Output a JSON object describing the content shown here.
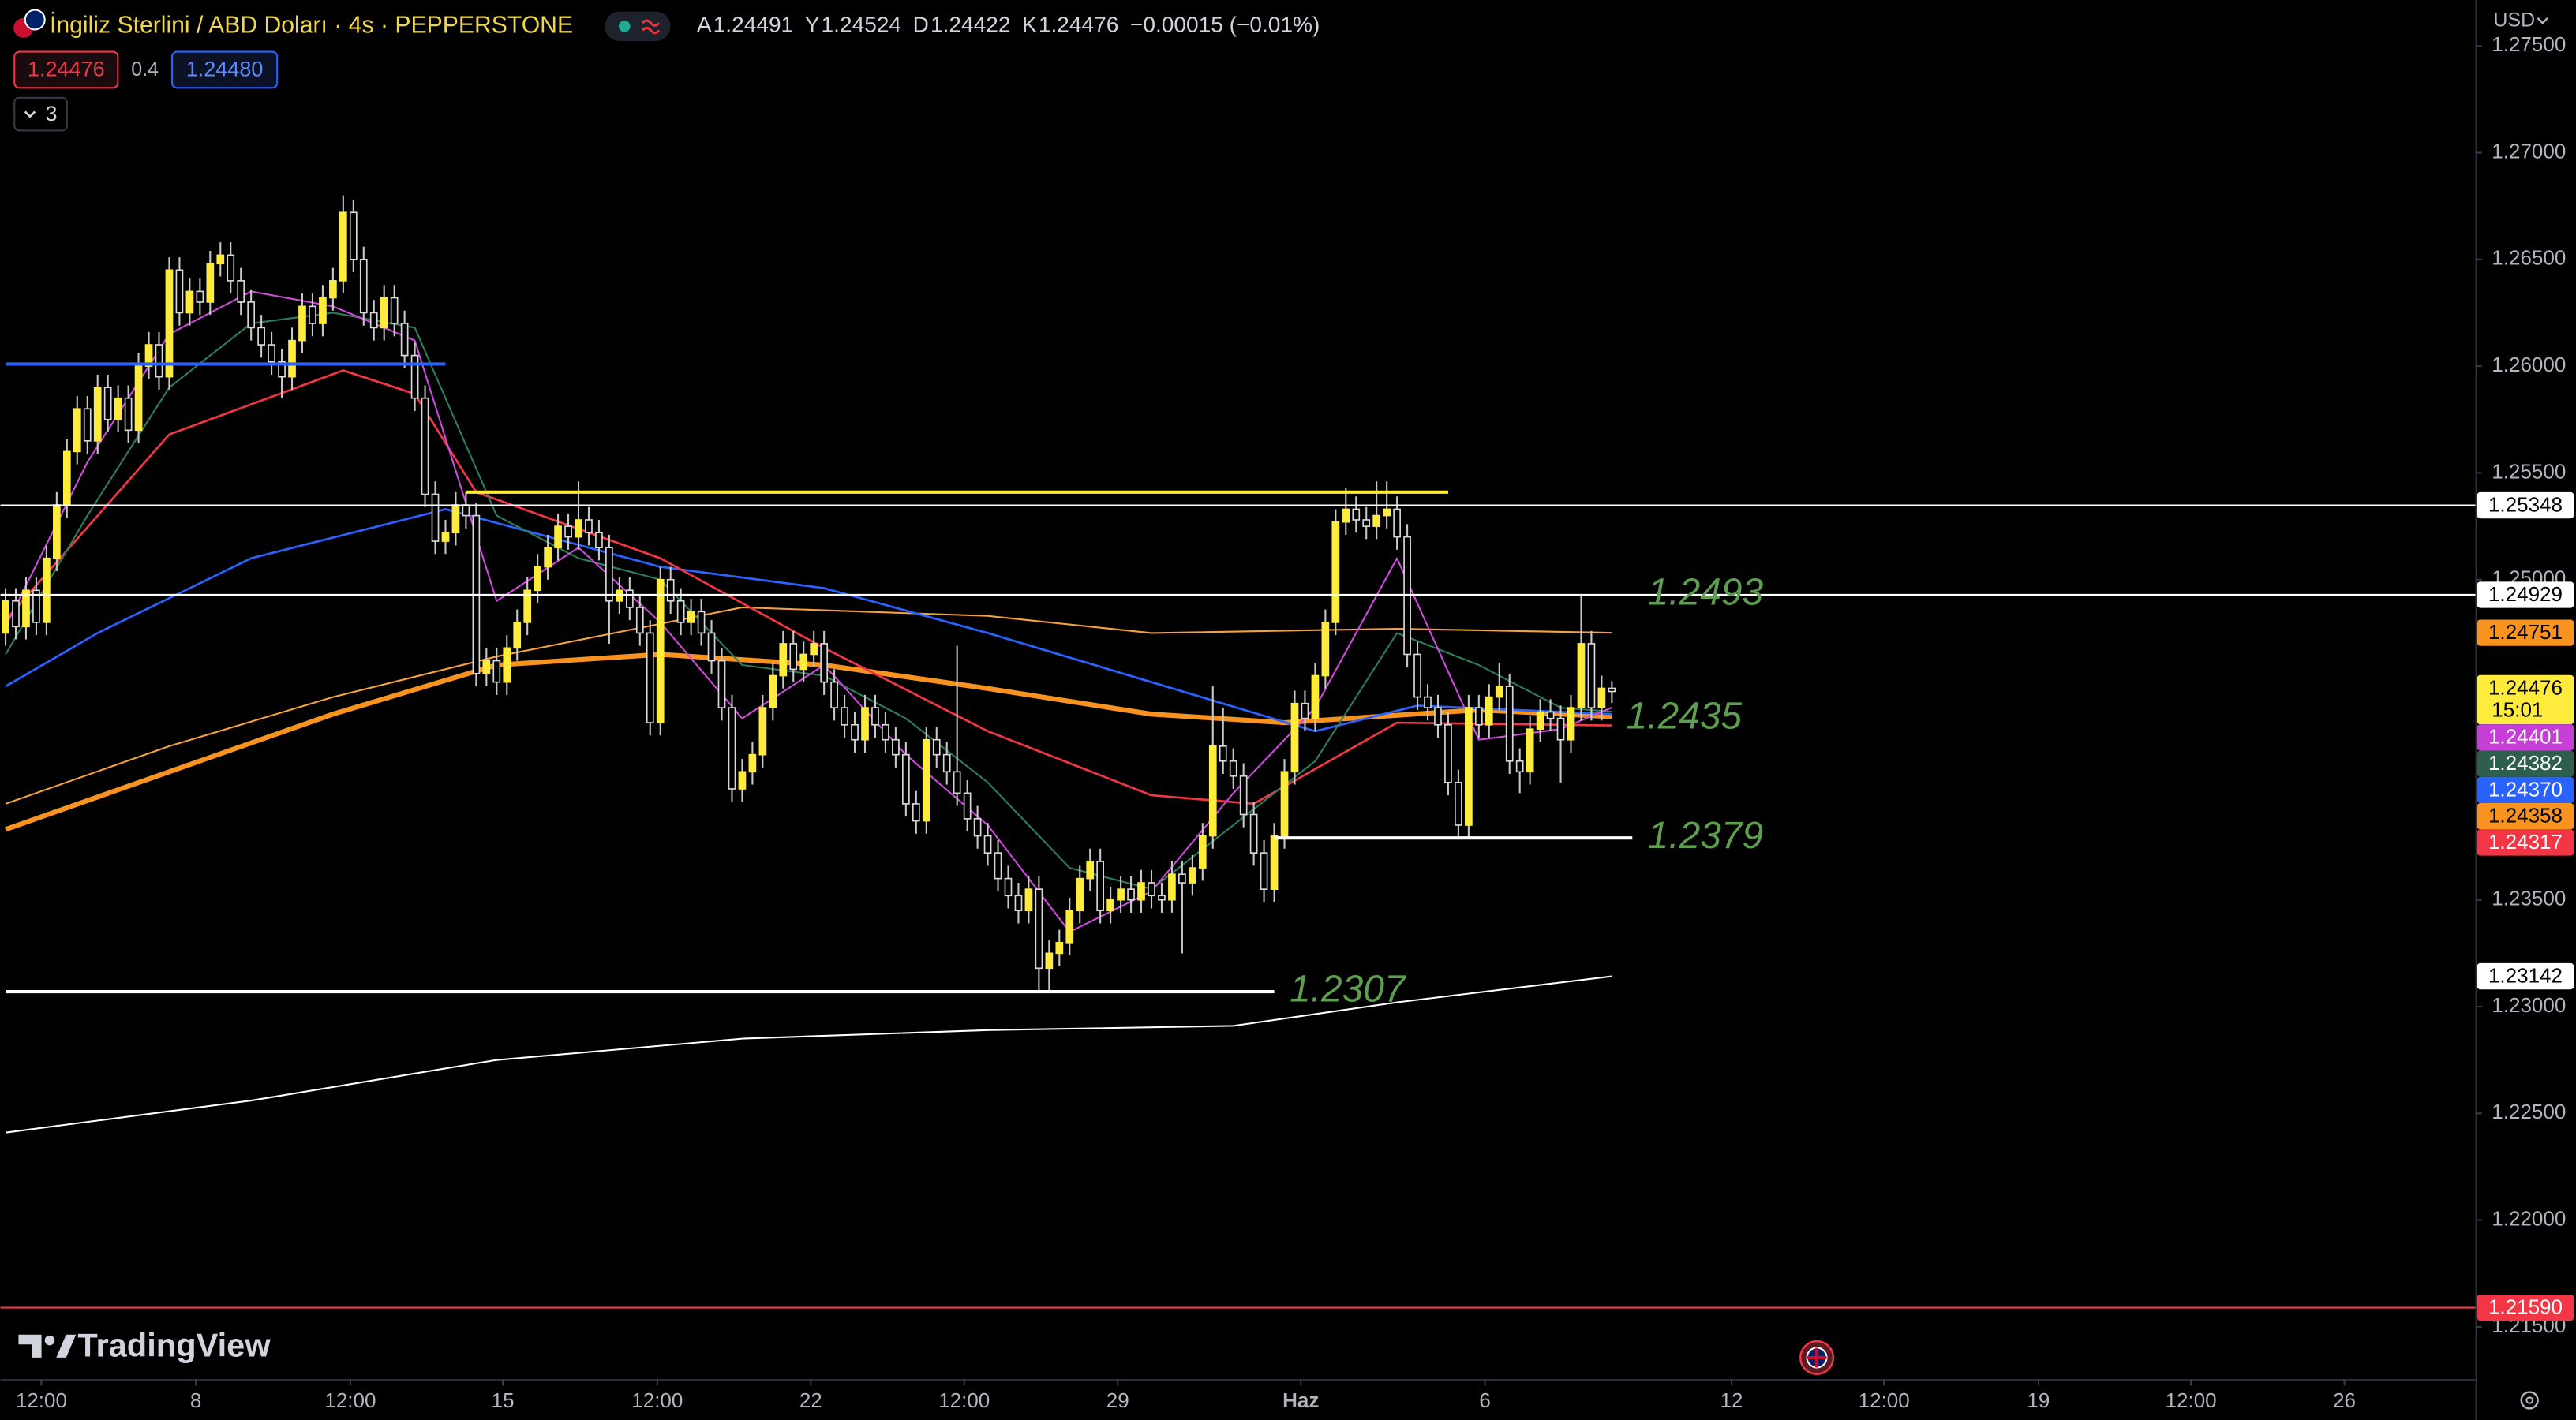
{
  "header": {
    "title": "İngiliz Sterlini / ABD Doları · 4s · PEPPERSTONE",
    "ohlc": [
      {
        "key": "A",
        "value": "1.24491"
      },
      {
        "key": "Y",
        "value": "1.24524"
      },
      {
        "key": "D",
        "value": "1.24422"
      },
      {
        "key": "K",
        "value": "1.24476"
      }
    ],
    "change": "−0.00015 (−0.01%)",
    "bid": "1.24476",
    "spread": "0.4",
    "ask": "1.24480",
    "indicators": "3",
    "currency": "USD"
  },
  "footer": {
    "brand": "TradingView"
  },
  "chart_data": {
    "type": "candlestick",
    "up_color": "#ffeb3b",
    "down_color": "#000000",
    "down_border": "#d8d8d8",
    "wick_color": "#c8c8c8",
    "xlim": [
      -0.5,
      241.4
    ],
    "ylim": [
      1.21256,
      1.27715
    ],
    "grid": false,
    "xticks": [
      {
        "value": 3.5,
        "label": "12:00"
      },
      {
        "value": 18.6,
        "label": "8"
      },
      {
        "value": 33.7,
        "label": "12:00"
      },
      {
        "value": 48.6,
        "label": "15"
      },
      {
        "value": 63.7,
        "label": "12:00"
      },
      {
        "value": 78.7,
        "label": "22"
      },
      {
        "value": 93.7,
        "label": "12:00"
      },
      {
        "value": 108.7,
        "label": "29"
      },
      {
        "value": 126.6,
        "label": "Haz"
      },
      {
        "value": 144.6,
        "label": "6"
      },
      {
        "value": 168.7,
        "label": "12"
      },
      {
        "value": 183.6,
        "label": "12:00"
      },
      {
        "value": 198.7,
        "label": "19"
      },
      {
        "value": 213.6,
        "label": "12:00"
      },
      {
        "value": 228.6,
        "label": "26"
      }
    ],
    "yticks": [
      {
        "value": 1.215,
        "label": "1.21500"
      },
      {
        "value": 1.22,
        "label": "1.22000"
      },
      {
        "value": 1.225,
        "label": "1.22500"
      },
      {
        "value": 1.23,
        "label": "1.23000"
      },
      {
        "value": 1.235,
        "label": "1.23500"
      },
      {
        "value": 1.24,
        "label": "1.24000"
      },
      {
        "value": 1.245,
        "label": "1.24500"
      },
      {
        "value": 1.25,
        "label": "1.25000"
      },
      {
        "value": 1.255,
        "label": "1.25500"
      },
      {
        "value": 1.26,
        "label": "1.26000"
      },
      {
        "value": 1.265,
        "label": "1.26500"
      },
      {
        "value": 1.27,
        "label": "1.27000"
      },
      {
        "value": 1.275,
        "label": "1.27500"
      }
    ],
    "open": [
      1.2475,
      1.249,
      1.2478,
      1.2495,
      1.248,
      1.251,
      1.2535,
      1.256,
      1.258,
      1.2565,
      1.259,
      1.2575,
      1.2585,
      1.257,
      1.26,
      1.261,
      1.2595,
      1.2645,
      1.2625,
      1.2635,
      1.263,
      1.2648,
      1.2652,
      1.264,
      1.263,
      1.2618,
      1.261,
      1.2602,
      1.2595,
      1.2612,
      1.2628,
      1.262,
      1.2632,
      1.264,
      1.2672,
      1.265,
      1.2625,
      1.2618,
      1.2632,
      1.262,
      1.2605,
      1.2585,
      1.254,
      1.2518,
      1.2522,
      1.2535,
      1.253,
      1.2456,
      1.2462,
      1.2452,
      1.2468,
      1.248,
      1.2495,
      1.2506,
      1.2515,
      1.2525,
      1.252,
      1.2528,
      1.2522,
      1.2515,
      1.249,
      1.2495,
      1.2487,
      1.2475,
      1.2433,
      1.25,
      1.249,
      1.248,
      1.2485,
      1.2475,
      1.2462,
      1.244,
      1.2402,
      1.241,
      1.2418,
      1.244,
      1.2455,
      1.247,
      1.2458,
      1.2465,
      1.247,
      1.2452,
      1.244,
      1.2432,
      1.2425,
      1.244,
      1.2432,
      1.2425,
      1.2418,
      1.2395,
      1.2387,
      1.2425,
      1.2418,
      1.241,
      1.24,
      1.2388,
      1.238,
      1.2372,
      1.236,
      1.2352,
      1.2345,
      1.2355,
      1.2318,
      1.2325,
      1.233,
      1.2345,
      1.236,
      1.2368,
      1.2345,
      1.235,
      1.2355,
      1.235,
      1.2358,
      1.2352,
      1.235,
      1.2362,
      1.2358,
      1.2365,
      1.238,
      1.2422,
      1.2415,
      1.2408,
      1.239,
      1.2372,
      1.2355,
      1.238,
      1.241,
      1.2442,
      1.2435,
      1.2455,
      1.248,
      1.2527,
      1.2533,
      1.2528,
      1.2525,
      1.253,
      1.2533,
      1.252,
      1.2465,
      1.2445,
      1.244,
      1.2432,
      1.2405,
      1.2385,
      1.244,
      1.2432,
      1.2445,
      1.245,
      1.2415,
      1.241,
      1.243,
      1.2438,
      1.2435,
      1.2425,
      1.244,
      1.247,
      1.244,
      1.24491
    ],
    "high": [
      1.2496,
      1.2496,
      1.2501,
      1.2501,
      1.2516,
      1.2541,
      1.2566,
      1.2586,
      1.2586,
      1.2596,
      1.2596,
      1.2591,
      1.2591,
      1.2606,
      1.2616,
      1.2616,
      1.2651,
      1.2651,
      1.2641,
      1.2641,
      1.2654,
      1.2658,
      1.2658,
      1.2646,
      1.2636,
      1.2624,
      1.2616,
      1.2608,
      1.2618,
      1.2634,
      1.2634,
      1.2638,
      1.2646,
      1.268,
      1.2678,
      1.2656,
      1.2631,
      1.2638,
      1.2638,
      1.2626,
      1.2611,
      1.2591,
      1.2546,
      1.2528,
      1.2541,
      1.2541,
      1.2536,
      1.2468,
      1.2468,
      1.2474,
      1.2486,
      1.2501,
      1.2512,
      1.2521,
      1.2531,
      1.2531,
      1.2546,
      1.2534,
      1.2528,
      1.2521,
      1.2501,
      1.2501,
      1.2493,
      1.2481,
      1.2506,
      1.2506,
      1.2496,
      1.2491,
      1.2491,
      1.2481,
      1.2468,
      1.2446,
      1.2416,
      1.2424,
      1.2446,
      1.2461,
      1.2476,
      1.2476,
      1.2471,
      1.2476,
      1.2476,
      1.2458,
      1.2446,
      1.2438,
      1.2446,
      1.2446,
      1.2438,
      1.2431,
      1.2424,
      1.2401,
      1.2431,
      1.2431,
      1.2424,
      1.2469,
      1.2406,
      1.2394,
      1.2386,
      1.2378,
      1.2366,
      1.2358,
      1.2361,
      1.2361,
      1.2331,
      1.2336,
      1.2351,
      1.2366,
      1.2374,
      1.2374,
      1.2356,
      1.2361,
      1.2361,
      1.2364,
      1.2364,
      1.2358,
      1.2368,
      1.2368,
      1.2371,
      1.2386,
      1.245,
      1.244,
      1.2421,
      1.2414,
      1.2396,
      1.2378,
      1.2386,
      1.2416,
      1.2448,
      1.2448,
      1.2461,
      1.2486,
      1.2533,
      1.2543,
      1.2539,
      1.2534,
      1.2546,
      1.2546,
      1.2539,
      1.2526,
      1.2471,
      1.2451,
      1.2446,
      1.2438,
      1.2411,
      1.2446,
      1.2446,
      1.2451,
      1.2461,
      1.2456,
      1.2421,
      1.2436,
      1.2444,
      1.2444,
      1.2441,
      1.2446,
      1.2493,
      1.2476,
      1.2455,
      1.24524
    ],
    "low": [
      1.2469,
      1.2472,
      1.2472,
      1.2474,
      1.2474,
      1.2504,
      1.2529,
      1.2554,
      1.2559,
      1.2559,
      1.2569,
      1.2569,
      1.2564,
      1.2564,
      1.2594,
      1.2589,
      1.2589,
      1.2619,
      1.2619,
      1.2624,
      1.2624,
      1.2642,
      1.2634,
      1.2624,
      1.2612,
      1.2604,
      1.2596,
      1.2585,
      1.2589,
      1.2606,
      1.2614,
      1.2614,
      1.2626,
      1.2634,
      1.2644,
      1.2619,
      1.2612,
      1.2612,
      1.2614,
      1.2599,
      1.2579,
      1.2534,
      1.2512,
      1.2512,
      1.2516,
      1.2524,
      1.245,
      1.245,
      1.2446,
      1.2446,
      1.2462,
      1.2474,
      1.2489,
      1.25,
      1.2509,
      1.2514,
      1.2514,
      1.2516,
      1.2509,
      1.247,
      1.2484,
      1.2481,
      1.2469,
      1.2427,
      1.2427,
      1.2484,
      1.2474,
      1.2474,
      1.2469,
      1.2456,
      1.2434,
      1.2396,
      1.2396,
      1.2404,
      1.2412,
      1.2434,
      1.2449,
      1.2452,
      1.2452,
      1.2459,
      1.2446,
      1.2434,
      1.2426,
      1.2419,
      1.2419,
      1.2426,
      1.2419,
      1.2412,
      1.2389,
      1.2381,
      1.2381,
      1.2412,
      1.2404,
      1.2394,
      1.2382,
      1.2374,
      1.2366,
      1.2354,
      1.2346,
      1.2339,
      1.2339,
      1.2307,
      1.2307,
      1.2319,
      1.2324,
      1.2339,
      1.2354,
      1.2339,
      1.2339,
      1.2344,
      1.2344,
      1.2344,
      1.2346,
      1.2344,
      1.2344,
      1.2325,
      1.2352,
      1.2359,
      1.2374,
      1.2409,
      1.2402,
      1.2384,
      1.2366,
      1.2349,
      1.2349,
      1.2374,
      1.2404,
      1.2429,
      1.2429,
      1.2449,
      1.2474,
      1.2521,
      1.2522,
      1.2519,
      1.2519,
      1.2524,
      1.2514,
      1.2459,
      1.2439,
      1.2434,
      1.2426,
      1.2399,
      1.2379,
      1.2379,
      1.2426,
      1.2426,
      1.2439,
      1.2409,
      1.24,
      1.2404,
      1.2424,
      1.2429,
      1.2405,
      1.2419,
      1.2434,
      1.2434,
      1.2434,
      1.24422
    ],
    "close": [
      1.249,
      1.2478,
      1.2495,
      1.248,
      1.251,
      1.2535,
      1.256,
      1.258,
      1.2565,
      1.259,
      1.2575,
      1.2585,
      1.257,
      1.26,
      1.261,
      1.2595,
      1.2645,
      1.2625,
      1.2635,
      1.263,
      1.2648,
      1.2652,
      1.264,
      1.263,
      1.2618,
      1.261,
      1.2602,
      1.2595,
      1.2612,
      1.2628,
      1.262,
      1.2632,
      1.264,
      1.2672,
      1.265,
      1.2625,
      1.2618,
      1.2632,
      1.262,
      1.2605,
      1.2585,
      1.254,
      1.2518,
      1.2522,
      1.2535,
      1.253,
      1.2456,
      1.2462,
      1.2452,
      1.2468,
      1.248,
      1.2495,
      1.2506,
      1.2515,
      1.2525,
      1.252,
      1.2528,
      1.2522,
      1.2515,
      1.249,
      1.2495,
      1.2487,
      1.2475,
      1.2433,
      1.25,
      1.249,
      1.248,
      1.2485,
      1.2475,
      1.2462,
      1.244,
      1.2402,
      1.241,
      1.2418,
      1.244,
      1.2455,
      1.247,
      1.2458,
      1.2465,
      1.247,
      1.2452,
      1.244,
      1.2432,
      1.2425,
      1.244,
      1.2432,
      1.2425,
      1.2418,
      1.2395,
      1.2387,
      1.2425,
      1.2418,
      1.241,
      1.24,
      1.2388,
      1.238,
      1.2372,
      1.236,
      1.2352,
      1.2345,
      1.2355,
      1.2318,
      1.2325,
      1.233,
      1.2345,
      1.236,
      1.2368,
      1.2345,
      1.235,
      1.2355,
      1.235,
      1.2358,
      1.2352,
      1.235,
      1.2362,
      1.2358,
      1.2365,
      1.238,
      1.2422,
      1.2415,
      1.2408,
      1.239,
      1.2372,
      1.2355,
      1.238,
      1.241,
      1.2442,
      1.2435,
      1.2455,
      1.248,
      1.2527,
      1.2533,
      1.2528,
      1.2525,
      1.253,
      1.2533,
      1.252,
      1.2465,
      1.2445,
      1.244,
      1.2432,
      1.2405,
      1.2385,
      1.244,
      1.2432,
      1.2445,
      1.245,
      1.2415,
      1.241,
      1.243,
      1.2438,
      1.2435,
      1.2425,
      1.244,
      1.247,
      1.244,
      1.24491,
      1.24476
    ],
    "series": [
      {
        "color": "#ffffff",
        "width": 1,
        "x": [
          0,
          24,
          48,
          72,
          96,
          120,
          136,
          157
        ],
        "values": [
          1.2241,
          1.2256,
          1.2275,
          1.2285,
          1.2289,
          1.2291,
          1.2302,
          1.23142
        ]
      },
      {
        "color": "#f7a13b",
        "width": 1,
        "x": [
          0,
          16,
          32,
          48,
          72,
          96,
          112,
          136,
          157
        ],
        "values": [
          1.2395,
          1.2422,
          1.2445,
          1.2464,
          1.2487,
          1.2483,
          1.2475,
          1.2477,
          1.24751
        ]
      },
      {
        "color": "#f7931e",
        "width": 3,
        "x": [
          0,
          16,
          32,
          48,
          64,
          80,
          96,
          112,
          125,
          144,
          157
        ],
        "values": [
          1.2383,
          1.241,
          1.2437,
          1.246,
          1.2465,
          1.246,
          1.2449,
          1.2437,
          1.2433,
          1.2439,
          1.24358
        ]
      },
      {
        "color": "#2962ff",
        "width": 1.3,
        "x": [
          0,
          9,
          24,
          43,
          64,
          80,
          96,
          112,
          128,
          138,
          157
        ],
        "values": [
          1.245,
          1.2475,
          1.251,
          1.2533,
          1.2506,
          1.2496,
          1.2475,
          1.2452,
          1.2429,
          1.2441,
          1.2437
        ]
      },
      {
        "color": "#f23645",
        "width": 1.3,
        "x": [
          0,
          16,
          33,
          40,
          46,
          64,
          80,
          96,
          112,
          122,
          136,
          157
        ],
        "values": [
          1.2481,
          1.2568,
          1.2598,
          1.2587,
          1.2541,
          1.251,
          1.2468,
          1.2429,
          1.2399,
          1.2395,
          1.2433,
          1.24317
        ]
      },
      {
        "color": "#2e7d5b",
        "width": 1,
        "x": [
          0,
          8,
          16,
          24,
          32,
          40,
          48,
          56,
          64,
          72,
          80,
          88,
          96,
          104,
          112,
          120,
          128,
          136,
          144,
          152,
          157
        ],
        "values": [
          1.2465,
          1.253,
          1.259,
          1.262,
          1.2625,
          1.2618,
          1.253,
          1.251,
          1.25,
          1.246,
          1.2455,
          1.2435,
          1.2405,
          1.2365,
          1.2355,
          1.2385,
          1.2415,
          1.2475,
          1.246,
          1.244,
          1.24382
        ]
      },
      {
        "color": "#d04adf",
        "width": 1,
        "x": [
          0,
          8,
          16,
          24,
          32,
          40,
          48,
          56,
          64,
          72,
          80,
          88,
          96,
          104,
          112,
          120,
          128,
          136,
          144,
          152,
          157
        ],
        "values": [
          1.2478,
          1.2555,
          1.2615,
          1.2635,
          1.2628,
          1.2612,
          1.249,
          1.2515,
          1.248,
          1.2435,
          1.246,
          1.2418,
          1.2385,
          1.2335,
          1.2354,
          1.24,
          1.244,
          1.251,
          1.2425,
          1.243,
          1.24401
        ]
      }
    ],
    "levels": [
      {
        "value": 1.2601,
        "color": "#2962ff",
        "from": 0,
        "to": 43
      },
      {
        "value": 1.2541,
        "color": "#ffeb3b",
        "from": 45,
        "to": 141
      },
      {
        "value": 1.25348,
        "color": "#ffffff"
      },
      {
        "value": 1.24929,
        "color": "#ffffff"
      },
      {
        "value": 1.2307,
        "color": "#ffffff",
        "from": 0,
        "to": 124
      },
      {
        "value": 1.2379,
        "color": "#ffffff",
        "from": 124,
        "to": 159
      },
      {
        "value": 1.2159,
        "color": "#f23645"
      }
    ],
    "annotations": [
      {
        "label": "1.2493",
        "value": 1.2493
      },
      {
        "label": "1.2435",
        "value": 1.2435
      },
      {
        "label": "1.2379",
        "value": 1.2379
      },
      {
        "label": "1.2307",
        "value": 1.2307
      }
    ],
    "price_labels": [
      {
        "value": 1.25348,
        "label": "1.25348",
        "color": "#ffffff",
        "text_color": "#000000"
      },
      {
        "value": 1.24929,
        "label": "1.24929",
        "color": "#ffffff",
        "text_color": "#000000"
      },
      {
        "value": 1.24751,
        "label": "1.24751",
        "color": "#f7931e",
        "text_color": "#000000"
      },
      {
        "value": 1.24476,
        "label": "1.24476",
        "sublabel": "15:01",
        "color": "#ffeb3b",
        "text_color": "#000000"
      },
      {
        "value": 1.24401,
        "label": "1.24401",
        "color": "#c53fd6",
        "text_color": "#ffffff"
      },
      {
        "value": 1.24382,
        "label": "1.24382",
        "color": "#2e5e4e",
        "text_color": "#ffffff"
      },
      {
        "value": 1.2437,
        "label": "1.24370",
        "color": "#2962ff",
        "text_color": "#ffffff"
      },
      {
        "value": 1.24358,
        "label": "1.24358",
        "color": "#f7931e",
        "text_color": "#000000"
      },
      {
        "value": 1.24317,
        "label": "1.24317",
        "color": "#f23645",
        "text_color": "#ffffff"
      },
      {
        "value": 1.23142,
        "label": "1.23142",
        "color": "#ffffff",
        "text_color": "#000000"
      },
      {
        "value": 1.2159,
        "label": "1.21590",
        "color": "#f23645",
        "text_color": "#ffffff"
      }
    ]
  }
}
